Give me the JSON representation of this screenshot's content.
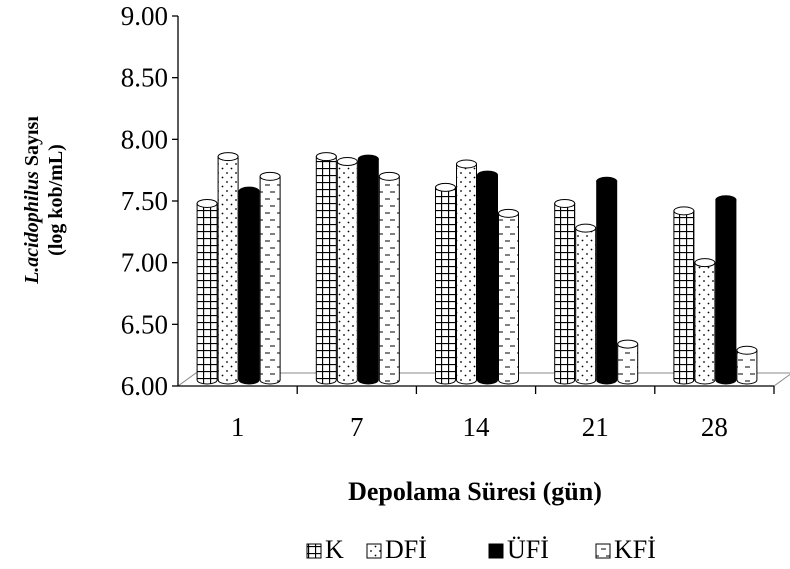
{
  "chart_data": {
    "type": "bar",
    "categories": [
      "1",
      "7",
      "14",
      "21",
      "28"
    ],
    "series": [
      {
        "name": "K",
        "pattern": "grid",
        "values": [
          7.48,
          7.86,
          7.61,
          7.48,
          7.42
        ]
      },
      {
        "name": "DFİ",
        "pattern": "dots",
        "values": [
          7.86,
          7.82,
          7.8,
          7.28,
          7.0
        ]
      },
      {
        "name": "ÜFİ",
        "pattern": "solid",
        "values": [
          7.58,
          7.84,
          7.71,
          7.66,
          7.51
        ]
      },
      {
        "name": "KFİ",
        "pattern": "dashes",
        "values": [
          7.7,
          7.7,
          7.4,
          6.34,
          6.29
        ]
      }
    ],
    "yticks": [
      "6.00",
      "6.50",
      "7.00",
      "7.50",
      "8.00",
      "8.50",
      "9.00"
    ],
    "ylim": [
      6.0,
      9.0
    ],
    "xlabel": "Depolama Süresi (gün)",
    "ylabel_italic": "L.acidophilus",
    "ylabel_rest": " Sayısı",
    "ylabel_line2": "(log kob/mL)",
    "legend_position": "bottom",
    "grid": false,
    "style": "3d-cylinder"
  }
}
